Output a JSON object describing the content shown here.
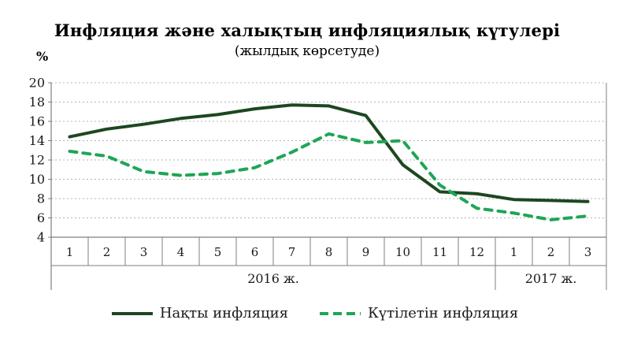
{
  "title": "Инфляция және халықтың инфляциялық күтулері",
  "subtitle": "(жылдық көрсетуде)",
  "y_axis_unit": "%",
  "chart_data": {
    "type": "line",
    "categories": [
      "1",
      "2",
      "3",
      "4",
      "5",
      "6",
      "7",
      "8",
      "9",
      "10",
      "11",
      "12",
      "1",
      "2",
      "3"
    ],
    "category_groups": [
      {
        "label": "2016 ж.",
        "span": 12
      },
      {
        "label": "2017 ж.",
        "span": 3
      }
    ],
    "series": [
      {
        "name": "Нақты инфляция",
        "style": "solid",
        "color": "#1d4720",
        "values": [
          14.4,
          15.2,
          15.7,
          16.3,
          16.7,
          17.3,
          17.7,
          17.6,
          16.6,
          11.5,
          8.7,
          8.5,
          7.9,
          7.8,
          7.7
        ]
      },
      {
        "name": "Күтілетін инфляция",
        "style": "dashed",
        "color": "#1ea656",
        "values": [
          12.9,
          12.4,
          10.8,
          10.4,
          10.6,
          11.2,
          12.8,
          14.7,
          13.8,
          14.0,
          9.4,
          7.0,
          6.5,
          5.8,
          6.2
        ]
      }
    ],
    "ylim": [
      4,
      20
    ],
    "yticks": [
      20,
      18,
      16,
      14,
      12,
      10,
      8,
      6,
      4
    ],
    "grid": "horizontal-dashed",
    "legend_position": "bottom",
    "colors": {
      "gridline": "#b3b3b3",
      "axis": "#7f7f7f",
      "tick_text": "#1a1a1a"
    }
  }
}
